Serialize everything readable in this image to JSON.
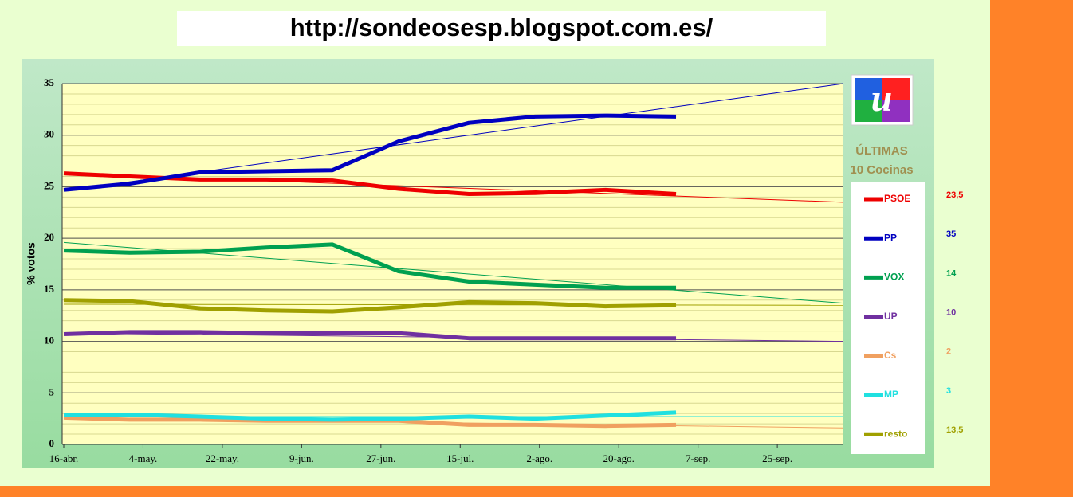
{
  "chart_data": {
    "type": "line",
    "title": "http://sondeosesp.blogspot.com.es/",
    "ylabel": "% votos",
    "legend_title": [
      "ÚLTIMAS",
      "10 Cocinas"
    ],
    "x": [
      0,
      15,
      31,
      46,
      61,
      76,
      92,
      107,
      123,
      139
    ],
    "xlim": [
      0,
      177
    ],
    "xticks": [
      {
        "value": 0,
        "label": "16-abr."
      },
      {
        "value": 18,
        "label": "4-may."
      },
      {
        "value": 36,
        "label": "22-may."
      },
      {
        "value": 54,
        "label": "9-jun."
      },
      {
        "value": 72,
        "label": "27-jun."
      },
      {
        "value": 90,
        "label": "15-jul."
      },
      {
        "value": 108,
        "label": "2-ago."
      },
      {
        "value": 126,
        "label": "20-ago."
      },
      {
        "value": 144,
        "label": "7-sep."
      },
      {
        "value": 162,
        "label": "25-sep."
      }
    ],
    "ylim": [
      0,
      35
    ],
    "yticks": [
      0,
      5,
      10,
      15,
      20,
      25,
      30,
      35
    ],
    "minor_grid_step": 1,
    "grid": true,
    "series": [
      {
        "name": "PSOE",
        "color": "#ee0000",
        "values": [
          26.3,
          26.0,
          25.7,
          25.7,
          25.6,
          24.8,
          24.3,
          24.4,
          24.7,
          24.3
        ],
        "trend": [
          26.3,
          23.5
        ],
        "projection_label": "23,5"
      },
      {
        "name": "PP",
        "color": "#0000c0",
        "values": [
          24.7,
          25.3,
          26.4,
          26.5,
          26.6,
          29.4,
          31.2,
          31.8,
          31.9,
          31.8
        ],
        "trend": [
          24.6,
          35
        ],
        "projection_label": "35"
      },
      {
        "name": "VOX",
        "color": "#00a050",
        "values": [
          18.8,
          18.6,
          18.7,
          19.1,
          19.4,
          16.8,
          15.8,
          15.5,
          15.2,
          15.2
        ],
        "trend": [
          19.6,
          13.7
        ],
        "projection_label": "14"
      },
      {
        "name": "UP",
        "color": "#7030a0",
        "values": [
          10.7,
          10.9,
          10.9,
          10.8,
          10.8,
          10.8,
          10.3,
          10.3,
          10.3,
          10.3
        ],
        "trend": [
          10.8,
          10.0
        ],
        "projection_label": "10"
      },
      {
        "name": "Cs",
        "color": "#f0a060",
        "values": [
          2.6,
          2.4,
          2.4,
          2.3,
          2.3,
          2.3,
          1.9,
          1.9,
          1.8,
          1.9
        ],
        "trend": [
          2.6,
          1.6
        ],
        "projection_label": "2"
      },
      {
        "name": "MP",
        "color": "#20e0e0",
        "values": [
          2.9,
          2.9,
          2.7,
          2.5,
          2.4,
          2.5,
          2.7,
          2.5,
          2.8,
          3.1
        ],
        "trend": [
          2.7,
          2.7
        ],
        "projection_label": "3"
      },
      {
        "name": "resto",
        "color": "#a0a000",
        "values": [
          14.0,
          13.9,
          13.2,
          13.0,
          12.9,
          13.3,
          13.8,
          13.7,
          13.4,
          13.5
        ],
        "trend": [
          13.6,
          13.5
        ],
        "projection_label": "13,5"
      }
    ]
  }
}
